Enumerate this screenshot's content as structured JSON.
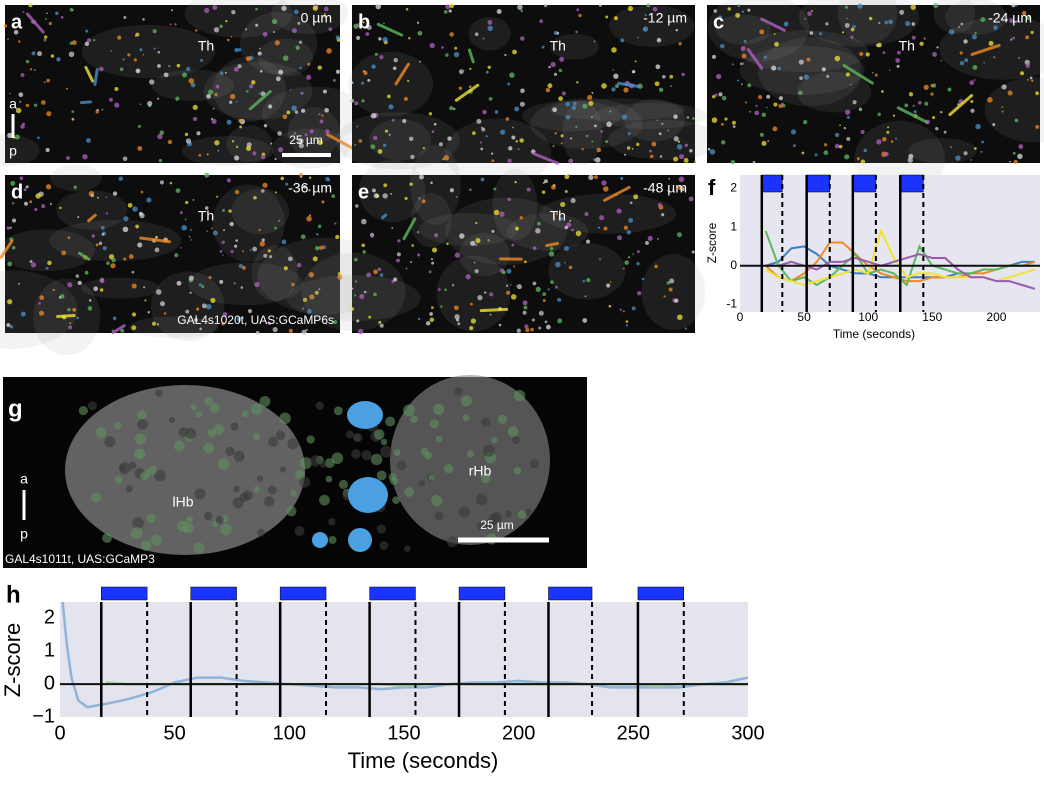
{
  "image_panels": [
    {
      "letter": "a",
      "depth": "0 µm",
      "region": "Th",
      "orientation": {
        "top": "a",
        "bottom": "p"
      },
      "scale_bar": "25 µm"
    },
    {
      "letter": "b",
      "depth": "-12 µm",
      "region": "Th"
    },
    {
      "letter": "c",
      "depth": "-24 µm",
      "region": "Th"
    },
    {
      "letter": "d",
      "depth": "-36 µm",
      "region": "Th",
      "line_label": "GAL4s1020t, UAS:GCaMP6s"
    },
    {
      "letter": "e",
      "depth": "-48 µm",
      "region": "Th"
    },
    {
      "letter": "g",
      "regions": [
        "lHb",
        "rHb"
      ],
      "orientation": {
        "top": "a",
        "bottom": "p"
      },
      "scale_bar": "25 µm",
      "line_label": "GAL4s1011t, UAS:GCaMP3"
    }
  ],
  "chart_data": [
    {
      "type": "line",
      "letter": "f",
      "xlabel": "Time (seconds)",
      "ylabel": "Z-score",
      "x": [
        20,
        30,
        40,
        50,
        60,
        70,
        80,
        90,
        100,
        110,
        120,
        130,
        140,
        150,
        160,
        170,
        180,
        190,
        200,
        210,
        220,
        230
      ],
      "series": [
        {
          "color": "#3b7fc4",
          "values": [
            0,
            0.1,
            0.45,
            0.5,
            0.3,
            0,
            -0.1,
            -0.2,
            -0.2,
            -0.3,
            -0.3,
            -0.3,
            -0.3,
            -0.3,
            -0.3,
            -0.2,
            -0.2,
            -0.1,
            -0.1,
            0,
            0.1,
            0.1
          ]
        },
        {
          "color": "#f08a24",
          "values": [
            0,
            -0.3,
            -0.4,
            -0.2,
            0.1,
            0.6,
            0.6,
            0.3,
            0,
            -0.2,
            -0.3,
            -0.4,
            -0.4,
            -0.3,
            -0.3,
            -0.3,
            -0.2,
            -0.2,
            -0.1,
            0,
            0,
            0.1
          ]
        },
        {
          "color": "#5cb85c",
          "values": [
            0.9,
            0,
            -0.4,
            -0.3,
            -0.5,
            -0.3,
            0,
            0.3,
            -0.2,
            -0.1,
            -0.2,
            -0.5,
            0.5,
            0,
            -0.1,
            -0.2,
            -0.2,
            -0.1,
            -0.1,
            0,
            0,
            0
          ]
        },
        {
          "color": "#f2e234",
          "values": [
            -0.1,
            -0.3,
            -0.4,
            -0.5,
            -0.4,
            -0.3,
            -0.2,
            -0.1,
            -0.2,
            0.9,
            0.2,
            -0.3,
            -0.2,
            -0.2,
            -0.3,
            -0.3,
            -0.3,
            -0.3,
            -0.4,
            -0.3,
            -0.2,
            -0.1
          ]
        },
        {
          "color": "#9b59b6",
          "values": [
            0,
            0,
            0.1,
            0,
            -0.1,
            0.1,
            0.1,
            0.2,
            0.1,
            0,
            0.1,
            0.2,
            0.3,
            0.2,
            0.2,
            -0.1,
            -0.3,
            -0.3,
            -0.4,
            -0.4,
            -0.5,
            -0.6
          ]
        }
      ],
      "reference_line": 0,
      "stimuli": [
        [
          17,
          33
        ],
        [
          52,
          70
        ],
        [
          88,
          106
        ],
        [
          125,
          143
        ]
      ],
      "stimulus_color": "#1a33ff",
      "background": "#e6e6f0",
      "xlim": [
        0,
        234
      ],
      "xticks": [
        0,
        50,
        100,
        150,
        200
      ],
      "ylim": [
        -1.2,
        2.35
      ],
      "yticks": [
        -1,
        0,
        1,
        2
      ]
    },
    {
      "type": "line",
      "letter": "h",
      "xlabel": "Time (seconds)",
      "ylabel": "Z-score",
      "x": [
        1,
        3,
        5,
        8,
        12,
        20,
        30,
        40,
        50,
        60,
        70,
        80,
        90,
        100,
        110,
        120,
        130,
        140,
        150,
        160,
        170,
        180,
        190,
        200,
        210,
        220,
        230,
        240,
        250,
        260,
        270,
        280,
        290,
        300
      ],
      "series": [
        {
          "color": "#8fb4d9",
          "values": [
            2.6,
            1.2,
            0.2,
            -0.5,
            -0.7,
            -0.6,
            -0.45,
            -0.25,
            0.05,
            0.2,
            0.2,
            0.1,
            0.05,
            0,
            -0.05,
            -0.1,
            -0.1,
            -0.15,
            -0.1,
            -0.1,
            0,
            0.05,
            0.05,
            0.1,
            0.05,
            0.05,
            0,
            -0.1,
            -0.1,
            -0.1,
            -0.1,
            0,
            0.05,
            0.2
          ]
        },
        {
          "color": "#a3d19c",
          "values": [
            null,
            null,
            null,
            null,
            null,
            0.05,
            0,
            0,
            0,
            0,
            0,
            0,
            0,
            0,
            0,
            0,
            0,
            0,
            -0.05,
            0,
            0,
            0,
            0,
            0,
            0,
            0,
            0,
            0,
            0,
            -0.05,
            0,
            0,
            0,
            0
          ]
        }
      ],
      "reference_line": 0,
      "stimuli": [
        [
          18,
          38
        ],
        [
          57,
          77
        ],
        [
          96,
          116
        ],
        [
          135,
          155
        ],
        [
          174,
          194
        ],
        [
          213,
          232
        ],
        [
          252,
          272
        ]
      ],
      "stimulus_color": "#1a33ff",
      "background": "#e4e4ee",
      "xlim": [
        0,
        300
      ],
      "xticks": [
        0,
        50,
        100,
        150,
        200,
        250,
        300
      ],
      "ylim": [
        -1,
        2.5
      ],
      "yticks": [
        {
          "value": -1,
          "label": "−1"
        },
        0,
        1,
        2
      ]
    }
  ]
}
